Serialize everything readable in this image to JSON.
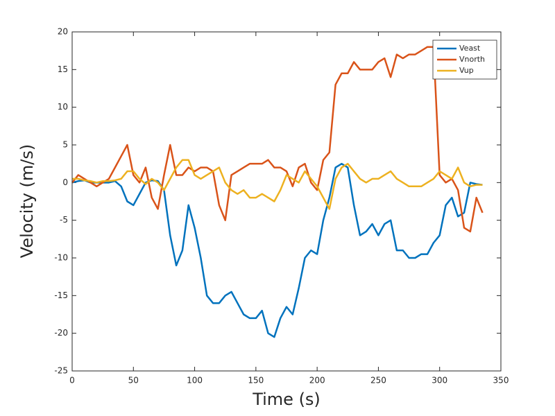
{
  "chart_data": {
    "type": "line",
    "xlabel": "Time (s)",
    "ylabel": "Velocity (m/s)",
    "x": [
      0,
      5,
      10,
      15,
      20,
      25,
      30,
      35,
      40,
      45,
      50,
      55,
      60,
      65,
      70,
      75,
      80,
      85,
      90,
      95,
      100,
      105,
      110,
      115,
      120,
      125,
      130,
      135,
      140,
      145,
      150,
      155,
      160,
      165,
      170,
      175,
      180,
      185,
      190,
      195,
      200,
      205,
      210,
      215,
      220,
      225,
      230,
      235,
      240,
      245,
      250,
      255,
      260,
      265,
      270,
      275,
      280,
      285,
      290,
      295,
      300,
      305,
      310,
      315,
      320,
      325,
      330,
      335
    ],
    "series": [
      {
        "name": "Veast",
        "color": "#0072bd",
        "values": [
          0,
          0.2,
          0.3,
          0,
          0,
          0,
          0,
          0.2,
          -0.5,
          -2.5,
          -3,
          -1.5,
          0,
          0.3,
          0.2,
          -1,
          -7,
          -11,
          -9,
          -3,
          -6,
          -10,
          -15,
          -16,
          -16,
          -15,
          -14.5,
          -16,
          -17.5,
          -18,
          -18,
          -17,
          -20,
          -20.5,
          -18,
          -16.5,
          -17.5,
          -14,
          -10,
          -9,
          -9.5,
          -5,
          -2,
          2,
          2.5,
          2,
          -3,
          -7,
          -6.5,
          -5.5,
          -7,
          -5.5,
          -5,
          -9,
          -9,
          -10,
          -10,
          -9.5,
          -9.5,
          -8,
          -7,
          -3,
          -2,
          -4.5,
          -4,
          0,
          -0.2,
          -0.3
        ]
      },
      {
        "name": "Vnorth",
        "color": "#d95319",
        "values": [
          0,
          1,
          0.5,
          0,
          -0.5,
          0,
          0.5,
          2,
          3.5,
          5,
          1,
          0,
          2,
          -2,
          -3.5,
          1,
          5,
          1,
          1,
          2,
          1.5,
          2,
          2,
          1.5,
          -3,
          -5,
          1,
          1.5,
          2,
          2.5,
          2.5,
          2.5,
          3,
          2,
          2,
          1.5,
          -0.5,
          2,
          2.5,
          0,
          -1,
          3,
          4,
          13,
          14.5,
          14.5,
          16,
          15,
          15,
          15,
          16,
          16.5,
          14,
          17,
          16.5,
          17,
          17,
          17.5,
          18,
          18,
          1,
          0,
          0.5,
          -1,
          -6,
          -6.5,
          -2,
          -4
        ]
      },
      {
        "name": "Vup",
        "color": "#edb120",
        "values": [
          0.5,
          0.5,
          0.3,
          0.2,
          0,
          0.2,
          0.2,
          0.3,
          0.5,
          1.5,
          1.5,
          0.5,
          -0.2,
          0.5,
          0,
          -1,
          0.5,
          2,
          3,
          3,
          1,
          0.5,
          1,
          1.5,
          2,
          0,
          -1,
          -1.5,
          -1,
          -2,
          -2,
          -1.5,
          -2,
          -2.5,
          -1,
          1,
          0.5,
          0,
          1.5,
          0.5,
          -0.5,
          -2,
          -3.5,
          0.5,
          2,
          2.5,
          1.5,
          0.5,
          0,
          0.5,
          0.5,
          1,
          1.5,
          0.5,
          0,
          -0.5,
          -0.5,
          -0.5,
          0,
          0.5,
          1.5,
          1,
          0.5,
          2,
          0,
          -0.5,
          -0.3,
          -0.3
        ]
      }
    ],
    "xlim": [
      0,
      350
    ],
    "xticks": [
      0,
      50,
      100,
      150,
      200,
      250,
      300,
      350
    ],
    "ylim": [
      -25,
      20
    ],
    "yticks": [
      -25,
      -20,
      -15,
      -10,
      -5,
      0,
      5,
      10,
      15,
      20
    ],
    "legend": "upper right"
  }
}
